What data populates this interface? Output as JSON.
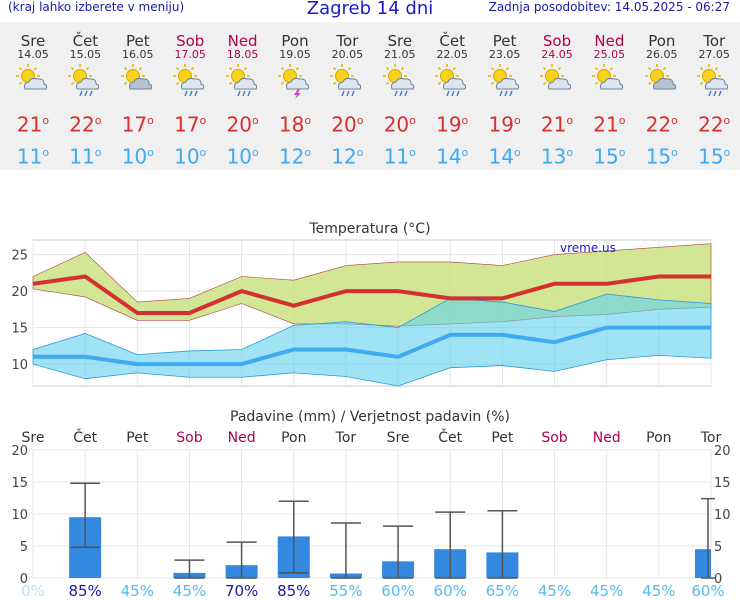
{
  "header": {
    "left_note": "(kraj lahko izberete v meniju)",
    "title": "Zagreb 14 dni",
    "updated": "Zadnja posodobitev: 14.05.2025 - 06:27"
  },
  "colors": {
    "tmax": "#d43030",
    "tmin": "#40aaf0",
    "weekend": "#b00050",
    "rain_bar": "#3388e0",
    "prob_low": "#55bbee",
    "prob_high": "#1a1aa0"
  },
  "days": [
    {
      "name": "Sre",
      "date": "14.05",
      "icon": "sun-cloud-icon",
      "tmax": "21",
      "tmin": "11",
      "weekend": false
    },
    {
      "name": "Čet",
      "date": "15.05",
      "icon": "sun-cloud-rain-icon",
      "tmax": "22",
      "tmin": "11",
      "weekend": false
    },
    {
      "name": "Pet",
      "date": "16.05",
      "icon": "sun-cloud-heavy-icon",
      "tmax": "17",
      "tmin": "10",
      "weekend": false
    },
    {
      "name": "Sob",
      "date": "17.05",
      "icon": "sun-cloud-rain-icon",
      "tmax": "17",
      "tmin": "10",
      "weekend": true
    },
    {
      "name": "Ned",
      "date": "18.05",
      "icon": "sun-cloud-rain-icon",
      "tmax": "20",
      "tmin": "10",
      "weekend": true
    },
    {
      "name": "Pon",
      "date": "19.05",
      "icon": "sun-cloud-storm-icon",
      "tmax": "18",
      "tmin": "12",
      "weekend": false
    },
    {
      "name": "Tor",
      "date": "20.05",
      "icon": "sun-cloud-rain-icon",
      "tmax": "20",
      "tmin": "12",
      "weekend": false
    },
    {
      "name": "Sre",
      "date": "21.05",
      "icon": "sun-cloud-rain-icon",
      "tmax": "20",
      "tmin": "11",
      "weekend": false
    },
    {
      "name": "Čet",
      "date": "22.05",
      "icon": "sun-cloud-rain-icon",
      "tmax": "19",
      "tmin": "14",
      "weekend": false
    },
    {
      "name": "Pet",
      "date": "23.05",
      "icon": "sun-cloud-rain-icon",
      "tmax": "19",
      "tmin": "14",
      "weekend": false
    },
    {
      "name": "Sob",
      "date": "24.05",
      "icon": "sun-cloud-icon",
      "tmax": "21",
      "tmin": "13",
      "weekend": true
    },
    {
      "name": "Ned",
      "date": "25.05",
      "icon": "sun-cloud-icon",
      "tmax": "21",
      "tmin": "15",
      "weekend": true
    },
    {
      "name": "Pon",
      "date": "26.05",
      "icon": "sun-cloud-heavy-icon",
      "tmax": "22",
      "tmin": "15",
      "weekend": false
    },
    {
      "name": "Tor",
      "date": "27.05",
      "icon": "sun-cloud-rain-icon",
      "tmax": "22",
      "tmin": "15",
      "weekend": false
    }
  ],
  "chart_data": [
    {
      "type": "line",
      "title": "Temperatura (°C)",
      "watermark": "vreme.us",
      "ylim": [
        7,
        27
      ],
      "yticks": [
        10,
        15,
        20,
        25
      ],
      "grid": true,
      "x": [
        "14.05",
        "15.05",
        "16.05",
        "17.05",
        "18.05",
        "19.05",
        "20.05",
        "21.05",
        "22.05",
        "23.05",
        "24.05",
        "25.05",
        "26.05",
        "27.05"
      ],
      "series": [
        {
          "values": [
            21,
            22,
            17,
            17,
            20,
            18,
            20,
            20,
            19,
            19,
            21,
            21,
            22,
            22
          ],
          "band_low": [
            20.3,
            19.2,
            16.0,
            16.0,
            18.3,
            15.5,
            15.5,
            15.2,
            15.5,
            15.8,
            16.5,
            16.8,
            17.5,
            17.8
          ],
          "band_high": [
            22.0,
            25.3,
            18.5,
            19.0,
            22.0,
            21.5,
            23.5,
            24.0,
            24.0,
            23.5,
            25.0,
            25.5,
            26.0,
            26.5
          ]
        },
        {
          "values": [
            11,
            11,
            10,
            10,
            10,
            12,
            12,
            11,
            14,
            14,
            13,
            15,
            15,
            15
          ],
          "band_low": [
            10.0,
            8.0,
            8.8,
            8.2,
            8.2,
            8.8,
            8.3,
            7.0,
            9.5,
            9.8,
            9.0,
            10.6,
            11.2,
            10.8
          ],
          "band_high": [
            12.0,
            14.2,
            11.3,
            11.8,
            12.0,
            15.3,
            15.8,
            15.0,
            19.0,
            18.5,
            17.2,
            19.6,
            18.8,
            18.3
          ]
        }
      ]
    },
    {
      "type": "bar",
      "title": "Padavine (mm) / Verjetnost padavin (%)",
      "ylim": [
        0,
        20
      ],
      "yticks": [
        0,
        5,
        10,
        15,
        20
      ],
      "grid": true,
      "categories": [
        "Sre",
        "Čet",
        "Pet",
        "Sob",
        "Ned",
        "Pon",
        "Tor",
        "Sre",
        "Čet",
        "Pet",
        "Sob",
        "Ned",
        "Pon",
        "Tor"
      ],
      "values": [
        0,
        9.5,
        0,
        0.8,
        2.0,
        6.5,
        0.7,
        2.6,
        4.5,
        4.0,
        0,
        0,
        0,
        4.5
      ],
      "error_low": [
        null,
        4.8,
        null,
        0,
        0,
        0.8,
        0,
        0,
        0,
        0,
        null,
        null,
        null,
        0
      ],
      "error_high": [
        null,
        14.8,
        null,
        2.8,
        5.6,
        12.0,
        8.6,
        8.1,
        10.3,
        10.5,
        null,
        null,
        null,
        12.4
      ],
      "probabilities": [
        "0%",
        "85%",
        "45%",
        "45%",
        "70%",
        "85%",
        "55%",
        "60%",
        "60%",
        "65%",
        "45%",
        "45%",
        "45%",
        "60%"
      ]
    }
  ]
}
